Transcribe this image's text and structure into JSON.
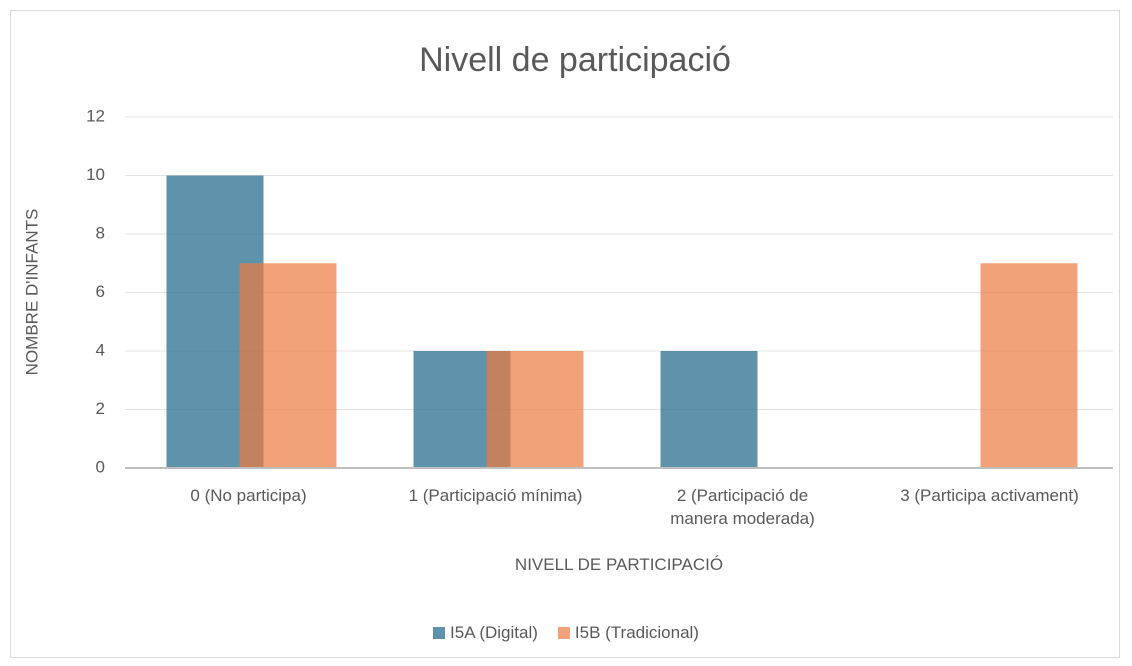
{
  "chart_data": {
    "type": "bar",
    "title": "Nivell de participació",
    "x_label": "NIVELL DE PARTICIPACIÓ",
    "y_label": "NOMBRE D'INFANTS",
    "categories": [
      "0 (No participa)",
      "1 (Participació mínima)",
      "2 (Participació de manera moderada)",
      "3 (Participa activament)"
    ],
    "series": [
      {
        "name": "I5A (Digital)",
        "color": "#1a6587",
        "values": [
          10,
          4,
          4,
          0
        ]
      },
      {
        "name": "I5B (Tradicional)",
        "color": "#ec7a3e",
        "values": [
          7,
          4,
          0,
          7
        ]
      }
    ],
    "ylim": [
      0,
      12
    ],
    "yticks": [
      0,
      2,
      4,
      6,
      8,
      10,
      12
    ],
    "grid": true,
    "legend": "bottom"
  }
}
